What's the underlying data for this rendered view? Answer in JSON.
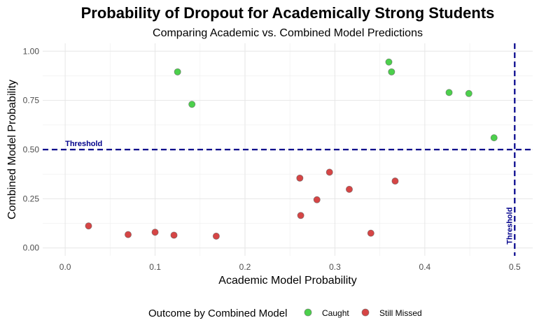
{
  "chart_data": {
    "type": "scatter",
    "title": "Probability of Dropout for Academically Strong Students",
    "subtitle": "Comparing Academic vs. Combined Model Predictions",
    "xlabel": "Academic Model Probability",
    "ylabel": "Combined Model Probability",
    "xlim": [
      -0.025,
      0.52
    ],
    "ylim": [
      -0.04,
      1.04
    ],
    "x_ticks": [
      0.0,
      0.1,
      0.2,
      0.3,
      0.4,
      0.5
    ],
    "x_tick_labels": [
      "0.0",
      "0.1",
      "0.2",
      "0.3",
      "0.4",
      "0.5"
    ],
    "y_ticks": [
      0.0,
      0.25,
      0.5,
      0.75,
      1.0
    ],
    "y_tick_labels": [
      "0.00",
      "0.25",
      "0.50",
      "0.75",
      "1.00"
    ],
    "grid": true,
    "legend_position": "bottom",
    "legend_title": "Outcome by Combined Model",
    "thresholds": {
      "horizontal": {
        "value": 0.5,
        "label": "Threshold"
      },
      "vertical": {
        "value": 0.5,
        "label": "Threshold"
      },
      "color": "#00008b"
    },
    "series": [
      {
        "name": "Caught",
        "color": "#4cd04c",
        "points": [
          {
            "x": 0.125,
            "y": 0.895
          },
          {
            "x": 0.141,
            "y": 0.73
          },
          {
            "x": 0.36,
            "y": 0.945
          },
          {
            "x": 0.363,
            "y": 0.895
          },
          {
            "x": 0.427,
            "y": 0.79
          },
          {
            "x": 0.449,
            "y": 0.785
          },
          {
            "x": 0.477,
            "y": 0.56
          }
        ]
      },
      {
        "name": "Still Missed",
        "color": "#d64545",
        "points": [
          {
            "x": 0.026,
            "y": 0.112
          },
          {
            "x": 0.07,
            "y": 0.068
          },
          {
            "x": 0.1,
            "y": 0.08
          },
          {
            "x": 0.121,
            "y": 0.065
          },
          {
            "x": 0.168,
            "y": 0.06
          },
          {
            "x": 0.261,
            "y": 0.355
          },
          {
            "x": 0.262,
            "y": 0.165
          },
          {
            "x": 0.28,
            "y": 0.245
          },
          {
            "x": 0.294,
            "y": 0.385
          },
          {
            "x": 0.316,
            "y": 0.298
          },
          {
            "x": 0.34,
            "y": 0.075
          },
          {
            "x": 0.367,
            "y": 0.34
          }
        ]
      }
    ]
  }
}
